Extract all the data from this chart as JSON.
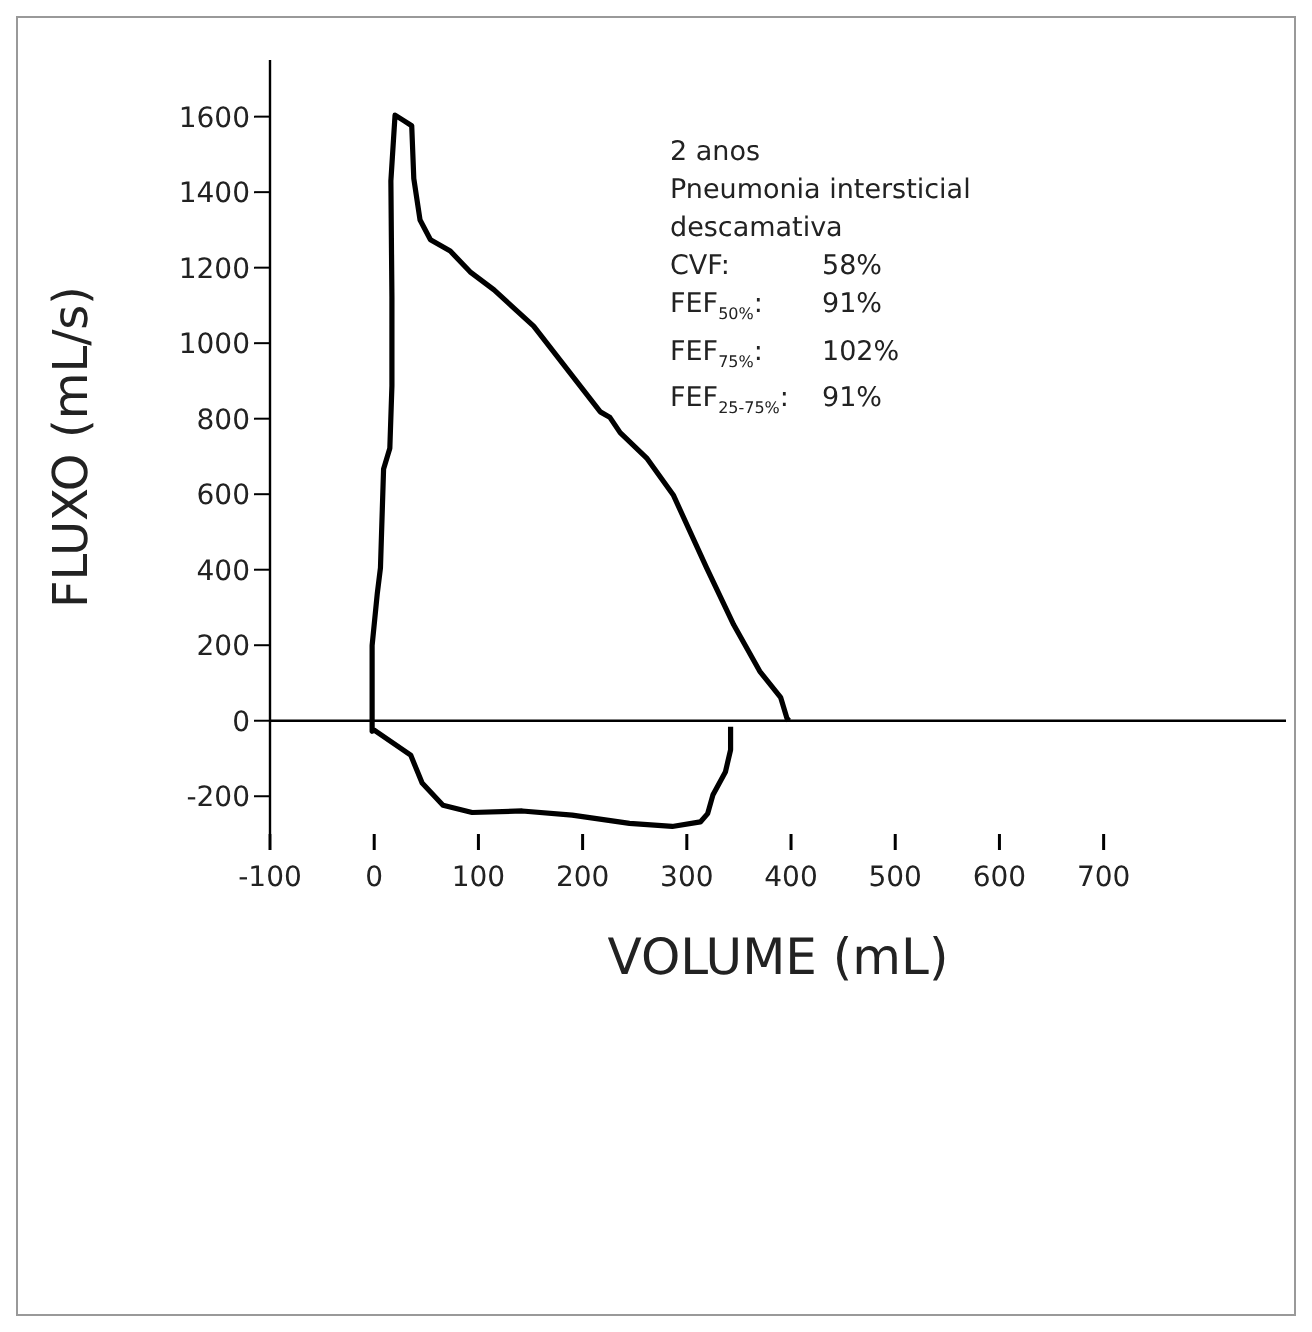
{
  "chart_data": {
    "type": "line",
    "xlabel": "VOLUME (mL)",
    "ylabel": "FLUXO (mL/s)",
    "annotations": [
      "2 anos",
      "Pneumonia intersticial",
      "descamativa",
      "CVF: 58%",
      "FEF$_{50%}$: 91%",
      "FEF$_{75%}$: 102%",
      "FEF$_{25-75%}$: 91%"
    ],
    "x": [
      342,
      342,
      337,
      325,
      320,
      313,
      286,
      245,
      190,
      142,
      94,
      66,
      46,
      35,
      0,
      -2,
      -2,
      3,
      6,
      9,
      15,
      17,
      17,
      16,
      20,
      28,
      36,
      38,
      44,
      54,
      73,
      92,
      115,
      153,
      217,
      226,
      236,
      262,
      287,
      319,
      345,
      370,
      390,
      396,
      398
    ],
    "series": [
      {
        "color": "#000000",
        "values": [
          -16,
          -77,
          -136,
          -197,
          -246,
          -268,
          -280,
          -272,
          -250,
          -239,
          -243,
          -224,
          -165,
          -91,
          -25,
          -28,
          199,
          338,
          405,
          667,
          722,
          887,
          1120,
          1430,
          1604,
          1590,
          1576,
          1436,
          1326,
          1274,
          1244,
          1189,
          1141,
          1045,
          818,
          804,
          763,
          694,
          598,
          405,
          254,
          131,
          62,
          7,
          0
        ]
      }
    ],
    "xlim": [
      -100,
      875
    ],
    "xticks": [
      -100,
      0,
      100,
      200,
      300,
      400,
      500,
      600,
      700
    ],
    "ylim": [
      -300,
      1750
    ],
    "yticks": [
      -200,
      0,
      200,
      400,
      600,
      800,
      1000,
      1200,
      1400,
      1600
    ],
    "ref_lines": [
      {
        "axis": "y",
        "value": 0,
        "color": "#000000"
      }
    ],
    "grid": false,
    "marker": "none",
    "line_style": "solid"
  }
}
